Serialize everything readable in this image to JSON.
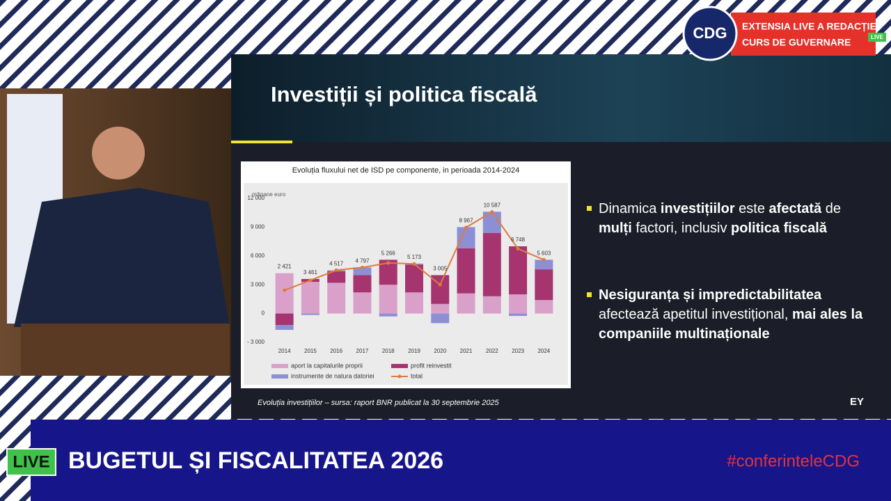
{
  "broadcast": {
    "logo": "CDG",
    "banner": [
      "EXTENSIA LIVE A REDACȚIEI",
      "CURS DE GUVERNARE"
    ],
    "live_small": "LIVE",
    "live": "LIVE",
    "headline": "BUGETUL ȘI FISCALITATEA 2026",
    "hashtag": "#conferinteleCDG"
  },
  "slide": {
    "title": "Investiții și politica fiscală",
    "bullets": [
      [
        {
          "text": "Dinamica ",
          "bold": false
        },
        {
          "text": "investițiilor",
          "bold": true
        },
        {
          "text": " este ",
          "bold": false
        },
        {
          "text": "afectată",
          "bold": true
        },
        {
          "text": " de ",
          "bold": false
        },
        {
          "text": "mulți",
          "bold": true
        },
        {
          "text": " factori, inclusiv ",
          "bold": false
        },
        {
          "text": "politica fiscală",
          "bold": true
        }
      ],
      [
        {
          "text": "Nesiguranța și impredictabilitatea",
          "bold": true
        },
        {
          "text": " afectează apetitul investițional, ",
          "bold": false
        },
        {
          "text": "mai ales la companiile multinaționale",
          "bold": true
        }
      ]
    ],
    "caption": "Evoluția investițiilor – sursa: raport BNR publicat la 30 septembrie 2025",
    "brand": "EY"
  },
  "chart_data": {
    "type": "bar",
    "stacked": true,
    "title": "Evoluția fluxului net de ISD pe componente, in perioada 2014-2024",
    "y_label": "milioane euro",
    "categories": [
      "2014",
      "2015",
      "2016",
      "2017",
      "2018",
      "2019",
      "2020",
      "2021",
      "2022",
      "2023",
      "2024"
    ],
    "series": [
      {
        "name": "aport la capitalurile proprii",
        "color": "#d9a1c9",
        "values": [
          4200,
          3300,
          3200,
          2200,
          3000,
          2200,
          1000,
          2100,
          1800,
          2000,
          1400
        ]
      },
      {
        "name": "profit reinvestit",
        "color": "#a5346f",
        "values": [
          -1200,
          300,
          1200,
          1800,
          2600,
          2900,
          3000,
          4700,
          6600,
          5000,
          3200
        ]
      },
      {
        "name": "instrumente de natura datoriei",
        "color": "#8c8fd3",
        "values": [
          -500,
          -150,
          100,
          800,
          -300,
          100,
          -1000,
          2200,
          2200,
          -250,
          1000
        ]
      },
      {
        "name": "total",
        "type": "line",
        "color": "#e07b3d",
        "values": [
          2421,
          3461,
          4517,
          4797,
          5266,
          5173,
          3005,
          8967,
          10587,
          6748,
          5603
        ],
        "value_labels": [
          "2 421",
          "3 461",
          "4 517",
          "4 797",
          "5 266",
          "5 173",
          "3 005",
          "8 967",
          "10 587",
          "6 748",
          "5 603"
        ]
      }
    ],
    "ylim": [
      -3000,
      12000
    ],
    "yticks": [
      {
        "value": -3000,
        "label": "- 3 000"
      },
      0,
      {
        "value": 3000,
        "label": "3 000"
      },
      {
        "value": 6000,
        "label": "6 000"
      },
      {
        "value": 9000,
        "label": "9 000"
      },
      {
        "value": 12000,
        "label": "12 000"
      }
    ],
    "grid": false
  }
}
